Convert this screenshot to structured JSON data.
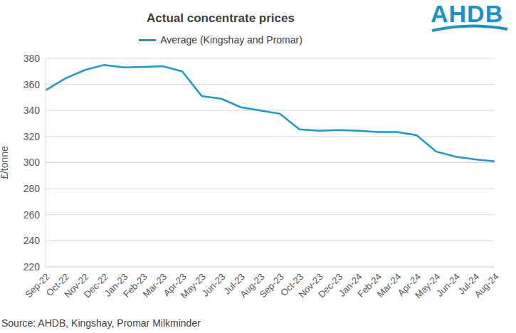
{
  "chart_data": {
    "type": "line",
    "title": "Actual concentrate prices",
    "logo": "AHDB",
    "y_label": "£/tonne",
    "source": "Source: AHDB, Kingshay, Promar Milkminder",
    "categories": [
      "Sep-22",
      "Oct-22",
      "Nov-22",
      "Dec-22",
      "Jan-23",
      "Feb-23",
      "Mar-23",
      "Apr-23",
      "May-23",
      "Jun-23",
      "Jul-23",
      "Aug-23",
      "Sep-23",
      "Oct-23",
      "Nov-23",
      "Dec-23",
      "Jan-24",
      "Feb-24",
      "Mar-24",
      "Apr-24",
      "May-24",
      "Jun-24",
      "Jul-24",
      "Aug-24"
    ],
    "series": [
      {
        "name": "Average (Kingshay and Promar)",
        "color": "#199ad1",
        "values": [
          355.5,
          364.5,
          371,
          375,
          373,
          373.5,
          374,
          370,
          351,
          349,
          342.5,
          340,
          337.5,
          325.5,
          324.5,
          325,
          324.5,
          323.5,
          323.5,
          321,
          308.5,
          304.5,
          302.5,
          301
        ]
      }
    ],
    "ylim": [
      220,
      380
    ],
    "yticks": [
      220,
      240,
      260,
      280,
      300,
      320,
      340,
      360,
      380
    ],
    "grid": true,
    "legend": "top"
  }
}
